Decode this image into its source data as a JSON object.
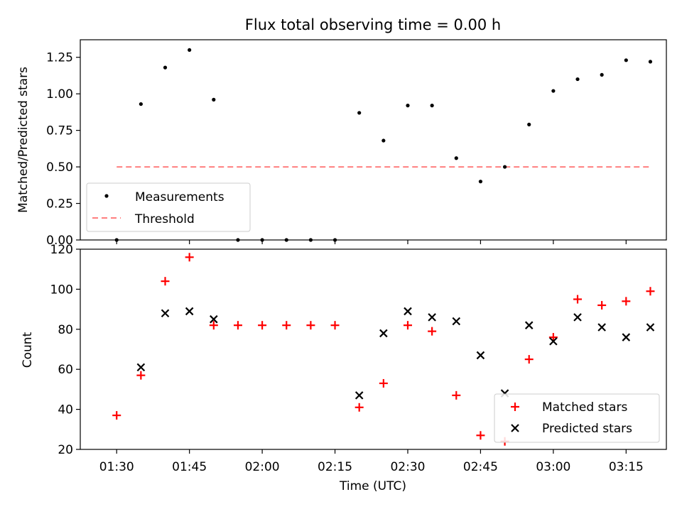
{
  "chart_data": [
    {
      "type": "scatter",
      "title": "Flux total observing time = 0.00 h",
      "xlabel": "",
      "ylabel": "Matched/Predicted stars",
      "ylim": [
        0,
        1.37
      ],
      "yticks": [
        "0.00",
        "0.25",
        "0.50",
        "0.75",
        "1.00",
        "1.25"
      ],
      "x_range_minutes": [
        "01:25",
        "03:25"
      ],
      "series": [
        {
          "name": "Measurements",
          "marker": "dot",
          "color": "#000000",
          "x": [
            "01:30",
            "01:35",
            "01:40",
            "01:45",
            "01:50",
            "01:55",
            "02:00",
            "02:05",
            "02:10",
            "02:15",
            "02:20",
            "02:25",
            "02:30",
            "02:35",
            "02:40",
            "02:45",
            "02:50",
            "02:55",
            "03:00",
            "03:05",
            "03:10",
            "03:15",
            "03:20"
          ],
          "values": [
            0.0,
            0.93,
            1.18,
            1.3,
            0.96,
            0.0,
            0.0,
            0.0,
            0.0,
            0.0,
            0.87,
            0.68,
            0.92,
            0.92,
            0.56,
            0.4,
            0.5,
            0.79,
            1.02,
            1.1,
            1.13,
            1.23,
            1.22
          ]
        },
        {
          "name": "Threshold",
          "marker": "dashed-line",
          "color": "#ff7f7f",
          "x": [
            "01:30",
            "03:20"
          ],
          "values": [
            0.5,
            0.5
          ]
        }
      ],
      "legend": "lower-left"
    },
    {
      "type": "scatter",
      "xlabel": "Time (UTC)",
      "ylabel": "Count",
      "ylim": [
        20,
        120
      ],
      "yticks": [
        "20",
        "40",
        "60",
        "80",
        "100",
        "120"
      ],
      "xticks": [
        "01:30",
        "01:45",
        "02:00",
        "02:15",
        "02:30",
        "02:45",
        "03:00",
        "03:15"
      ],
      "series": [
        {
          "name": "Matched stars",
          "marker": "plus",
          "color": "#ff0000",
          "x": [
            "01:30",
            "01:35",
            "01:40",
            "01:45",
            "01:50",
            "01:55",
            "02:00",
            "02:05",
            "02:10",
            "02:15",
            "02:20",
            "02:25",
            "02:30",
            "02:35",
            "02:40",
            "02:45",
            "02:50",
            "02:55",
            "03:00",
            "03:05",
            "03:10",
            "03:15",
            "03:20"
          ],
          "values": [
            37,
            57,
            104,
            116,
            82,
            82,
            82,
            82,
            82,
            82,
            41,
            53,
            82,
            79,
            47,
            27,
            24,
            65,
            76,
            95,
            92,
            94,
            99
          ]
        },
        {
          "name": "Predicted stars",
          "marker": "x",
          "color": "#000000",
          "x": [
            "01:35",
            "01:40",
            "01:45",
            "01:50",
            "02:20",
            "02:25",
            "02:30",
            "02:35",
            "02:40",
            "02:45",
            "02:50",
            "02:55",
            "03:00",
            "03:05",
            "03:10",
            "03:15",
            "03:20"
          ],
          "values": [
            61,
            88,
            89,
            85,
            47,
            78,
            89,
            86,
            84,
            67,
            48,
            82,
            74,
            86,
            81,
            76,
            81
          ]
        }
      ],
      "legend": "lower-right"
    }
  ]
}
